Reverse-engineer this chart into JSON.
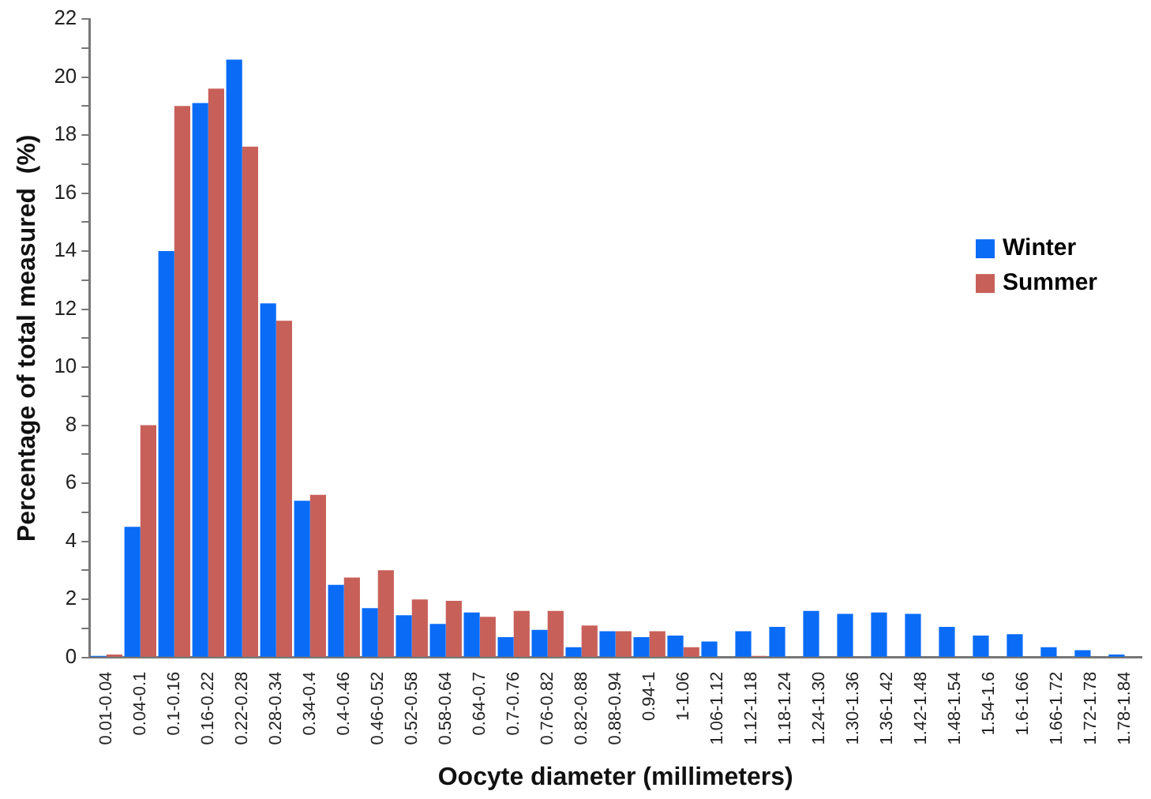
{
  "chart_data": {
    "type": "bar",
    "xlabel": "Oocyte diameter (millimeters)",
    "ylabel": "Percentage of total measured  (%)",
    "categories": [
      "0.01-0.04",
      "0.04-0.1",
      "0.1-0.16",
      "0.16-0.22",
      "0.22-0.28",
      "0.28-0.34",
      "0.34-0.4",
      "0.4-0.46",
      "0.46-0.52",
      "0.52-0.58",
      "0.58-0.64",
      "0.64-0.7",
      "0.7-0.76",
      "0.76-0.82",
      "0.82-0.88",
      "0.88-0.94",
      "0.94-1",
      "1-1.06",
      "1.06-1.12",
      "1.12-1.18",
      "1.18-1.24",
      "1.24-1.30",
      "1.30-1.36",
      "1.36-1.42",
      "1.42-1.48",
      "1.48-1.54",
      "1.54-1.6",
      "1.6-1.66",
      "1.66-1.72",
      "1.72-1.78",
      "1.78-1.84"
    ],
    "series": [
      {
        "name": "Winter",
        "color": "#0a6cf6",
        "values": [
          0.05,
          4.5,
          14,
          19.1,
          20.6,
          12.2,
          5.4,
          2.5,
          1.7,
          1.45,
          1.15,
          1.55,
          0.7,
          0.95,
          0.35,
          0.9,
          0.7,
          0.75,
          0.55,
          0.9,
          1.05,
          1.6,
          1.5,
          1.55,
          1.5,
          1.05,
          0.75,
          0.8,
          0.35,
          0.25,
          0.1
        ]
      },
      {
        "name": "Summer",
        "color": "#c8605a",
        "values": [
          0.1,
          8,
          19,
          19.6,
          17.6,
          11.6,
          5.6,
          2.75,
          3.0,
          2.0,
          1.95,
          1.4,
          1.6,
          1.6,
          1.1,
          0.9,
          0.9,
          0.35,
          0,
          0.05,
          0,
          0,
          0,
          0,
          0,
          0,
          0,
          0,
          0,
          0,
          0
        ]
      }
    ],
    "ylim": [
      0,
      22
    ],
    "yticks": [
      0,
      {
        "value": 1,
        "label": null
      },
      2,
      {
        "value": 3,
        "label": null
      },
      4,
      {
        "value": 5,
        "label": null
      },
      6,
      {
        "value": 7,
        "label": null
      },
      8,
      {
        "value": 9,
        "label": null
      },
      10,
      {
        "value": 11,
        "label": null
      },
      12,
      {
        "value": 13,
        "label": null
      },
      14,
      {
        "value": 15,
        "label": null
      },
      16,
      {
        "value": 17,
        "label": null
      },
      18,
      {
        "value": 19,
        "label": null
      },
      20,
      {
        "value": 21,
        "label": null
      },
      22
    ],
    "grid": false,
    "legend": "right"
  }
}
